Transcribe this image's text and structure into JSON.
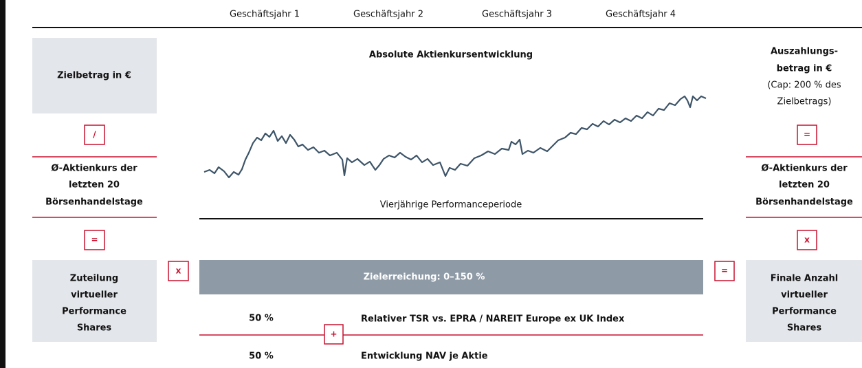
{
  "header": {
    "years": [
      "Geschäftsjahr 1",
      "Geschäftsjahr 2",
      "Geschäftsjahr 3",
      "Geschäftsjahr 4"
    ]
  },
  "left": {
    "target": "Zielbetrag in €",
    "operator1": "/",
    "avg_price": [
      "Ø-Aktienkurs der",
      "letzten 20",
      "Börsenhandelstage"
    ],
    "operator2": "=",
    "allocation": [
      "Zuteilung",
      "virtueller",
      "Performance",
      "Shares"
    ]
  },
  "middle": {
    "operator_left": "x",
    "chart_title": "Absolute Aktienkursentwicklung",
    "period": "Vierjährige Performanceperiode",
    "target_bar": "Zielerreichung: 0–150 %",
    "components": [
      {
        "weight": "50 %",
        "label": "Relativer TSR vs. EPRA / NAREIT Europe ex UK Index"
      },
      {
        "weight": "50 %",
        "label": "Entwicklung NAV je Aktie"
      }
    ],
    "operator_plus": "+",
    "operator_right": "="
  },
  "right": {
    "payout": [
      "Auszahlungs-",
      "betrag in €",
      "(Cap: 200 % des",
      "Zielbetrags)"
    ],
    "operator1": "=",
    "avg_price": [
      "Ø-Aktienkurs der",
      "letzten 20",
      "Börsenhandelstage"
    ],
    "operator2": "x",
    "final": [
      "Finale Anzahl",
      "virtueller",
      "Performance",
      "Shares"
    ]
  }
}
